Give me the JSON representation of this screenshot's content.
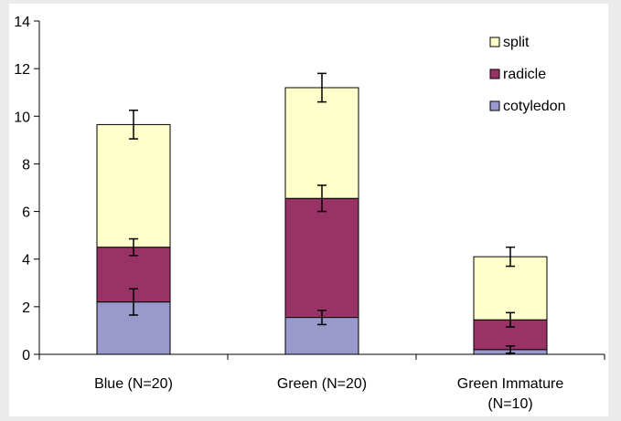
{
  "chart_data": {
    "type": "bar",
    "stacked": true,
    "categories": [
      [
        "Blue (N=20)"
      ],
      [
        "Green (N=20)"
      ],
      [
        "Green Immature",
        "(N=10)"
      ]
    ],
    "series": [
      {
        "name": "cotyledon",
        "color": "#9999cc",
        "values": [
          2.2,
          1.55,
          0.2
        ],
        "error": [
          0.55,
          0.3,
          0.15
        ]
      },
      {
        "name": "radicle",
        "color": "#993366",
        "values": [
          2.3,
          5.0,
          1.25
        ],
        "error": [
          0.35,
          0.55,
          0.3
        ]
      },
      {
        "name": "split",
        "color": "#ffffcc",
        "values": [
          5.15,
          4.65,
          2.65
        ],
        "error": [
          0.6,
          0.6,
          0.4
        ]
      }
    ],
    "ylim": [
      0,
      14
    ],
    "yticks": [
      0,
      2,
      4,
      6,
      8,
      10,
      12,
      14
    ],
    "grid": false,
    "legend_position": "top-right",
    "legend_order": [
      "split",
      "radicle",
      "cotyledon"
    ]
  }
}
